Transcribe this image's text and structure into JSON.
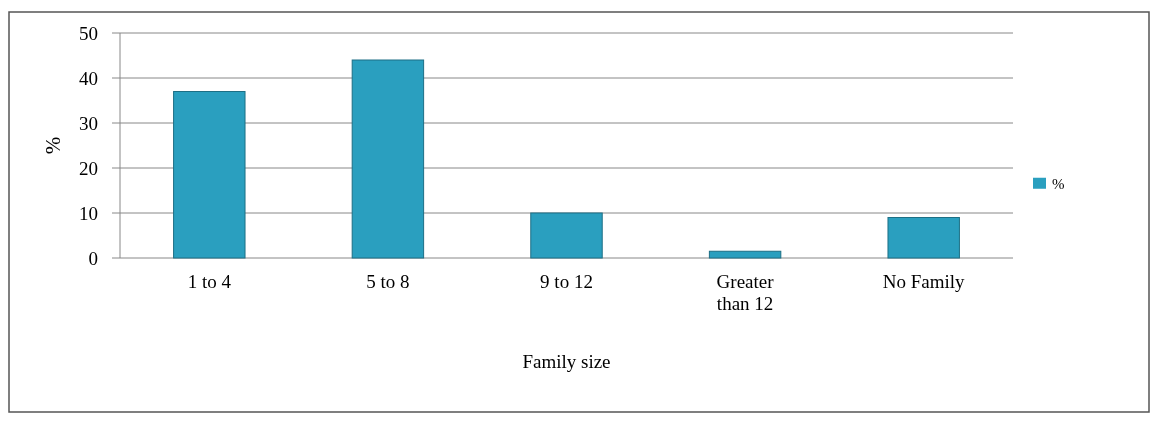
{
  "chart_data": {
    "type": "bar",
    "xlabel": "Family size",
    "ylabel": "%",
    "categories": [
      "1 to 4",
      "5 to 8",
      "9 to 12",
      "Greater than 12",
      "No Family"
    ],
    "series": [
      {
        "name": "%",
        "color": "#2a9fbf",
        "values": [
          37,
          44,
          10,
          1.5,
          9
        ]
      }
    ],
    "ylim": [
      0,
      50
    ],
    "yticks": [
      0,
      10,
      20,
      30,
      40,
      50
    ],
    "grid": "y",
    "legend": "right"
  }
}
